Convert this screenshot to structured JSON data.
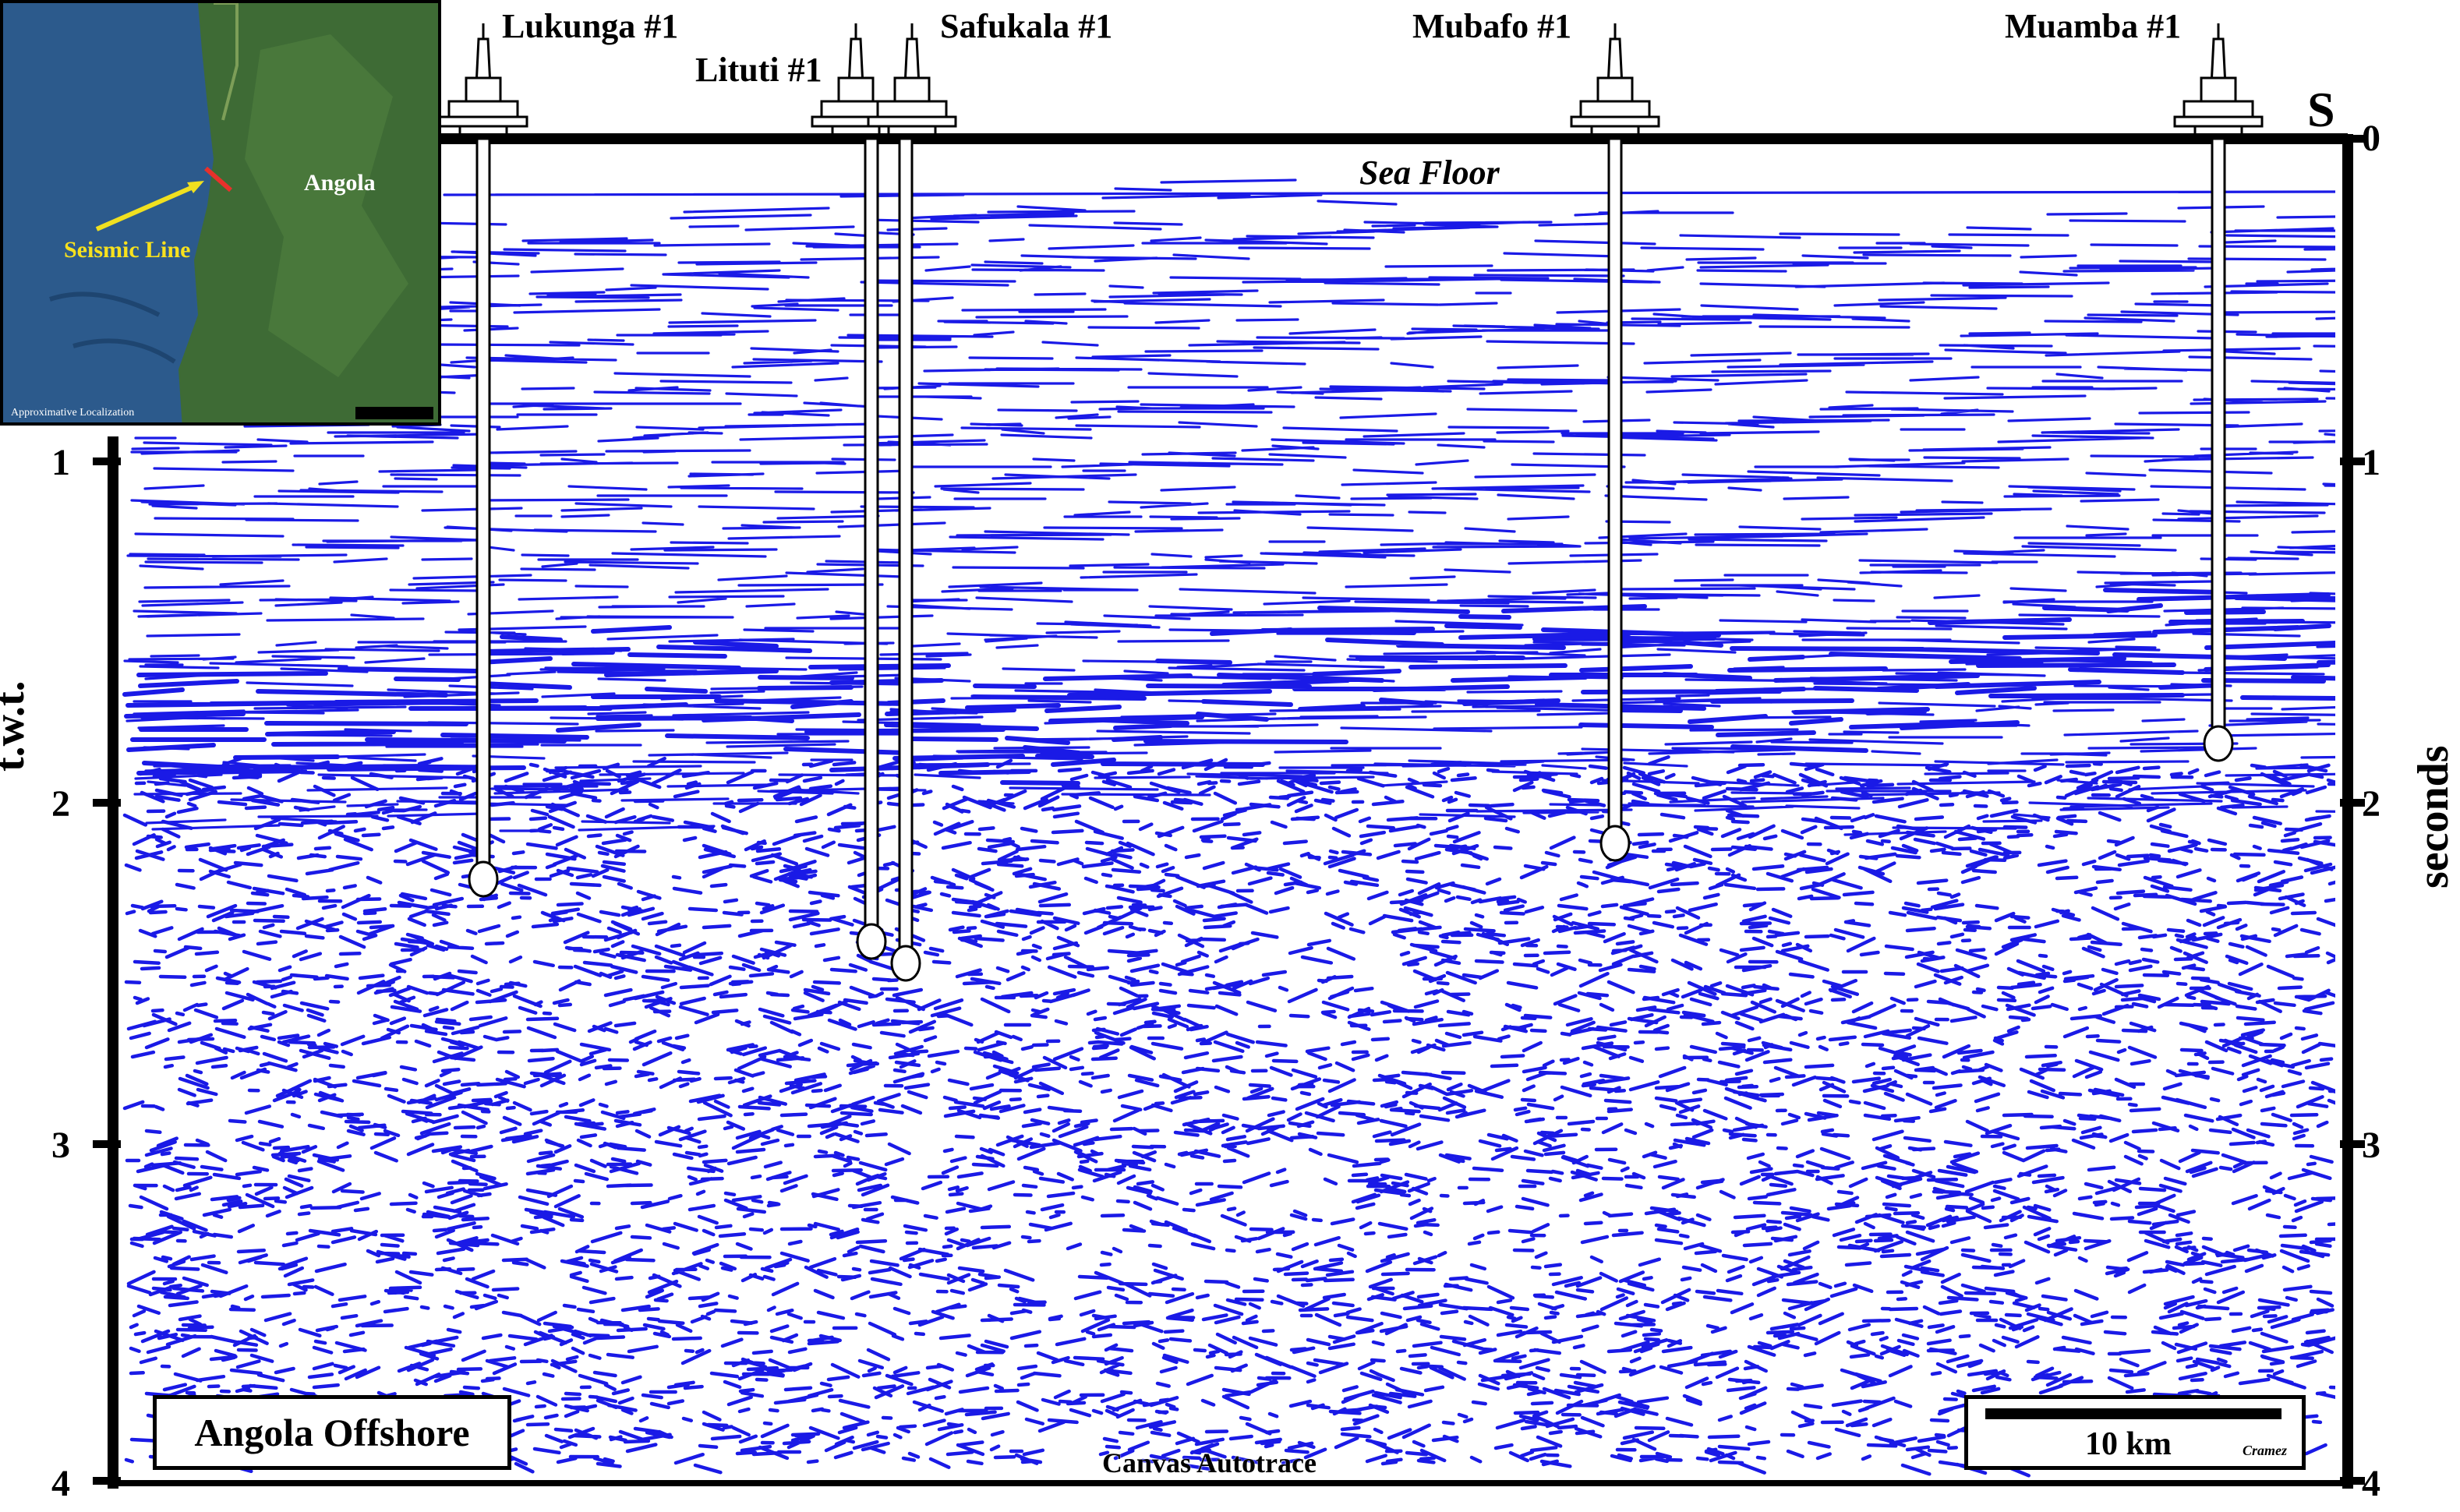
{
  "figure": {
    "wells": [
      {
        "name": "Lukunga #1"
      },
      {
        "name": "Lituti #1"
      },
      {
        "name": "Safukala #1"
      },
      {
        "name": "Mubafo #1"
      },
      {
        "name": "Muamba #1"
      }
    ],
    "direction_label": "S",
    "sea_floor_label": "Sea Floor",
    "bottom_label": "Canvas Autotrace",
    "left_axis_title": "t.w.t.",
    "right_axis_title": "seconds",
    "left_ticks": [
      "1",
      "2",
      "3",
      "4"
    ],
    "right_ticks": [
      "0",
      "1",
      "2",
      "3",
      "4"
    ],
    "area_label": "Angola Offshore",
    "scale_label": "10 km",
    "signature": "Cramez",
    "colors": {
      "reflector": "#1a1ae6",
      "frame": "#000000"
    }
  },
  "inset": {
    "country_label": "Angola",
    "line_label": "Seismic Line",
    "footer_left": "Approximative Localization",
    "colors": {
      "ocean": "#2c5a8c",
      "land": "#3e6b35",
      "line": "#e8312b",
      "arrow": "#f0e020"
    }
  }
}
